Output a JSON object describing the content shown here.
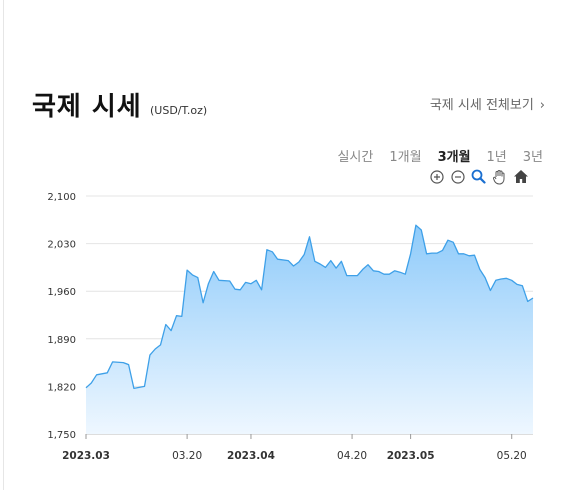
{
  "header": {
    "title": "국제 시세",
    "unit": "(USD/T.oz)",
    "view_all": "국제 시세 전체보기",
    "view_all_chevron": "›"
  },
  "periods": [
    {
      "label": "실시간",
      "active": false
    },
    {
      "label": "1개월",
      "active": false
    },
    {
      "label": "3개월",
      "active": true
    },
    {
      "label": "1년",
      "active": false
    },
    {
      "label": "3년",
      "active": false
    }
  ],
  "toolbar": {
    "icons": [
      "zoom-in-icon",
      "zoom-out-icon",
      "magnifier-icon",
      "pan-hand-icon",
      "home-icon"
    ]
  },
  "colors": {
    "line": "#3ea0e8",
    "fill_top": "#8fcbfa",
    "fill_bottom": "#eef7ff",
    "grid": "#e4e4e4"
  },
  "chart_data": {
    "type": "area",
    "y_ticks": [
      "2,100",
      "2,030",
      "1,960",
      "1,890",
      "1,820",
      "1,750"
    ],
    "ylim": [
      1750,
      2100
    ],
    "x_labels": [
      {
        "text": "2023.03",
        "bold": true
      },
      {
        "text": "03.20",
        "bold": false
      },
      {
        "text": "2023.04",
        "bold": true
      },
      {
        "text": "04.20",
        "bold": false
      },
      {
        "text": "2023.05",
        "bold": true
      },
      {
        "text": "05.20",
        "bold": false
      }
    ],
    "x_label_dates": [
      "2023-03-01",
      "2023-03-20",
      "2023-04-01",
      "2023-04-20",
      "2023-05-01",
      "2023-05-20"
    ],
    "series": [
      {
        "points": [
          [
            "2023-03-01",
            1818
          ],
          [
            "2023-03-02",
            1825
          ],
          [
            "2023-03-03",
            1837
          ],
          [
            "2023-03-05",
            1840
          ],
          [
            "2023-03-06",
            1856
          ],
          [
            "2023-03-08",
            1855
          ],
          [
            "2023-03-09",
            1852
          ],
          [
            "2023-03-10",
            1817
          ],
          [
            "2023-03-12",
            1820
          ],
          [
            "2023-03-13",
            1866
          ],
          [
            "2023-03-14",
            1875
          ],
          [
            "2023-03-15",
            1881
          ],
          [
            "2023-03-16",
            1911
          ],
          [
            "2023-03-17",
            1902
          ],
          [
            "2023-03-18",
            1924
          ],
          [
            "2023-03-19",
            1923
          ],
          [
            "2023-03-20",
            1991
          ],
          [
            "2023-03-21",
            1984
          ],
          [
            "2023-03-22",
            1980
          ],
          [
            "2023-03-23",
            1943
          ],
          [
            "2023-03-24",
            1971
          ],
          [
            "2023-03-25",
            1989
          ],
          [
            "2023-03-26",
            1976
          ],
          [
            "2023-03-28",
            1975
          ],
          [
            "2023-03-29",
            1963
          ],
          [
            "2023-03-30",
            1962
          ],
          [
            "2023-03-31",
            1973
          ],
          [
            "2023-04-01",
            1971
          ],
          [
            "2023-04-02",
            1976
          ],
          [
            "2023-04-03",
            1962
          ],
          [
            "2023-04-04",
            2021
          ],
          [
            "2023-04-05",
            2018
          ],
          [
            "2023-04-06",
            2007
          ],
          [
            "2023-04-08",
            2005
          ],
          [
            "2023-04-09",
            1997
          ],
          [
            "2023-04-10",
            2003
          ],
          [
            "2023-04-11",
            2014
          ],
          [
            "2023-04-12",
            2040
          ],
          [
            "2023-04-13",
            2004
          ],
          [
            "2023-04-14",
            2000
          ],
          [
            "2023-04-15",
            1995
          ],
          [
            "2023-04-16",
            2005
          ],
          [
            "2023-04-17",
            1994
          ],
          [
            "2023-04-18",
            2004
          ],
          [
            "2023-04-19",
            1983
          ],
          [
            "2023-04-21",
            1983
          ],
          [
            "2023-04-22",
            1992
          ],
          [
            "2023-04-23",
            1999
          ],
          [
            "2023-04-24",
            1990
          ],
          [
            "2023-04-25",
            1989
          ],
          [
            "2023-04-26",
            1985
          ],
          [
            "2023-04-27",
            1985
          ],
          [
            "2023-04-28",
            1990
          ],
          [
            "2023-04-29",
            1988
          ],
          [
            "2023-04-30",
            1985
          ],
          [
            "2023-05-01",
            2015
          ],
          [
            "2023-05-02",
            2057
          ],
          [
            "2023-05-03",
            2050
          ],
          [
            "2023-05-04",
            2015
          ],
          [
            "2023-05-05",
            2016
          ],
          [
            "2023-05-06",
            2016
          ],
          [
            "2023-05-07",
            2020
          ],
          [
            "2023-05-08",
            2035
          ],
          [
            "2023-05-09",
            2032
          ],
          [
            "2023-05-10",
            2015
          ],
          [
            "2023-05-11",
            2015
          ],
          [
            "2023-05-12",
            2012
          ],
          [
            "2023-05-13",
            2013
          ],
          [
            "2023-05-14",
            1992
          ],
          [
            "2023-05-15",
            1980
          ],
          [
            "2023-05-16",
            1961
          ],
          [
            "2023-05-17",
            1976
          ],
          [
            "2023-05-18",
            1978
          ],
          [
            "2023-05-19",
            1979
          ],
          [
            "2023-05-20",
            1976
          ],
          [
            "2023-05-21",
            1970
          ],
          [
            "2023-05-22",
            1968
          ],
          [
            "2023-05-23",
            1945
          ],
          [
            "2023-05-24",
            1950
          ]
        ]
      }
    ]
  }
}
